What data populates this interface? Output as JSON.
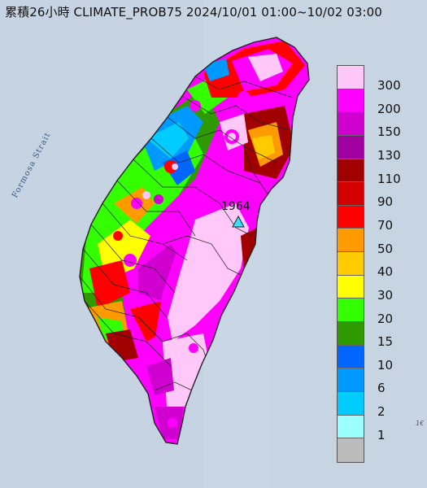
{
  "title": "累積26小時 CLIMATE_PROB75 2024/10/01 01:00~10/02 03:00",
  "strait_label": "Formosa Strait",
  "station": {
    "id": "1964",
    "marker": "triangle-icon"
  },
  "edge_text": "1€",
  "legend": {
    "unit": "",
    "items": [
      {
        "label": "300",
        "color": "#ffc8f8"
      },
      {
        "label": "200",
        "color": "#ff00ff"
      },
      {
        "label": "150",
        "color": "#d000d0"
      },
      {
        "label": "130",
        "color": "#a000a0"
      },
      {
        "label": "110",
        "color": "#a00000"
      },
      {
        "label": "90",
        "color": "#d40000"
      },
      {
        "label": "70",
        "color": "#ff0000"
      },
      {
        "label": "50",
        "color": "#ff9a00"
      },
      {
        "label": "40",
        "color": "#ffca00"
      },
      {
        "label": "30",
        "color": "#ffff00"
      },
      {
        "label": "20",
        "color": "#33ff00"
      },
      {
        "label": "15",
        "color": "#2f9a00"
      },
      {
        "label": "10",
        "color": "#0066ff"
      },
      {
        "label": "6",
        "color": "#0099ff"
      },
      {
        "label": "2",
        "color": "#00ccff"
      },
      {
        "label": "1",
        "color": "#99ffff"
      },
      {
        "label": "",
        "color": "#bbbbbb"
      }
    ]
  },
  "colors": {
    "sea": "#c9d6e3",
    "land_boundary": "#222222"
  }
}
